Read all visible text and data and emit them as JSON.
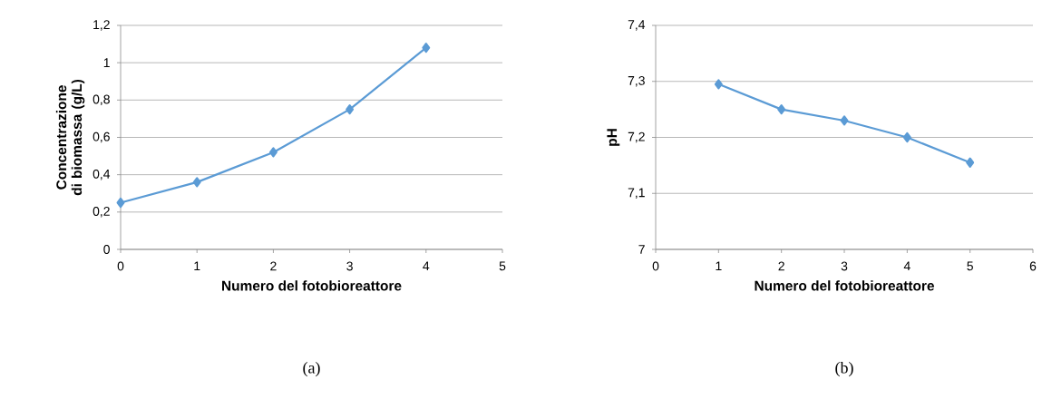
{
  "chart_data": [
    {
      "type": "line",
      "xlabel": "Numero del fotobioreattore",
      "ylabel": "Concentrazione di biomassa (g/L)",
      "annotations": [
        "(a)"
      ],
      "color": "#5b9bd5",
      "marker": "diamond",
      "grid": "y",
      "x": [
        0,
        1,
        2,
        3,
        4
      ],
      "values": [
        0.25,
        0.36,
        0.52,
        0.75,
        1.08
      ],
      "xlim": [
        0,
        5
      ],
      "xticks": [
        0,
        1,
        2,
        3,
        4,
        5
      ],
      "ylim": [
        0,
        1.2
      ],
      "yticks": [
        0,
        {
          "value": 0.2,
          "label": "0,2"
        },
        {
          "value": 0.4,
          "label": "0,4"
        },
        {
          "value": 0.6,
          "label": "0,6"
        },
        {
          "value": 0.8,
          "label": "0,8"
        },
        1,
        {
          "value": 1.2,
          "label": "1,2"
        }
      ]
    },
    {
      "type": "line",
      "xlabel": "Numero del fotobioreattore",
      "ylabel": "pH",
      "annotations": [
        "(b)"
      ],
      "color": "#5b9bd5",
      "marker": "diamond",
      "grid": "y",
      "x": [
        1,
        2,
        3,
        4,
        5
      ],
      "values": [
        7.295,
        7.25,
        7.23,
        7.2,
        7.155
      ],
      "xlim": [
        0,
        6
      ],
      "xticks": [
        0,
        1,
        2,
        3,
        4,
        5,
        6
      ],
      "ylim": [
        7,
        7.4
      ],
      "yticks": [
        7,
        {
          "value": 7.1,
          "label": "7,1"
        },
        {
          "value": 7.2,
          "label": "7,2"
        },
        {
          "value": 7.3,
          "label": "7,3"
        },
        {
          "value": 7.4,
          "label": "7,4"
        }
      ]
    }
  ]
}
